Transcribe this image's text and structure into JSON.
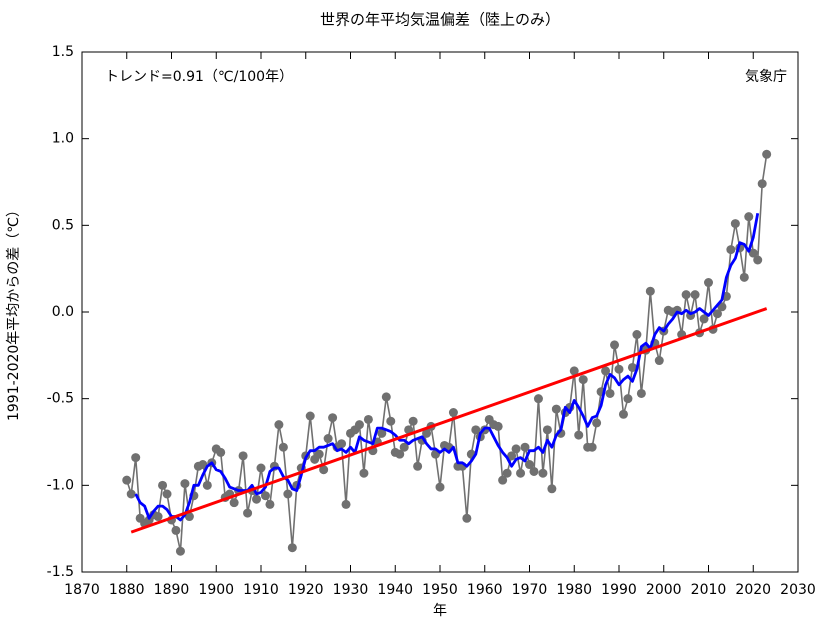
{
  "chart_data": {
    "type": "line",
    "title": "世界の年平均気温偏差（陸上のみ）",
    "x_label": "年",
    "y_label": "1991-2020年平均からの差（℃）",
    "annotations": [
      "トレンド=0.91（℃/100年）",
      "気象庁"
    ],
    "xlim": [
      1870,
      2030
    ],
    "xticks": [
      1870,
      1880,
      1890,
      1900,
      1910,
      1920,
      1930,
      1940,
      1950,
      1960,
      1970,
      1980,
      1990,
      2000,
      2010,
      2020,
      2030
    ],
    "ylim": [
      -1.5,
      1.5
    ],
    "yticks": [
      {
        "value": -1.5,
        "label": "-1.5"
      },
      {
        "value": -1.0,
        "label": "-1.0"
      },
      {
        "value": -0.5,
        "label": "-0.5"
      },
      {
        "value": 0,
        "label": "0.0"
      },
      {
        "value": 0.5,
        "label": "0.5"
      },
      {
        "value": 1.0,
        "label": "1.0"
      },
      {
        "value": 1.5,
        "label": "1.5"
      }
    ],
    "grid": false,
    "series": [
      {
        "color": "#707070",
        "markers": true,
        "x": [
          1880,
          1881,
          1882,
          1883,
          1884,
          1885,
          1886,
          1887,
          1888,
          1889,
          1890,
          1891,
          1892,
          1893,
          1894,
          1895,
          1896,
          1897,
          1898,
          1899,
          1900,
          1901,
          1902,
          1903,
          1904,
          1905,
          1906,
          1907,
          1908,
          1909,
          1910,
          1911,
          1912,
          1913,
          1914,
          1915,
          1916,
          1917,
          1918,
          1919,
          1920,
          1921,
          1922,
          1923,
          1924,
          1925,
          1926,
          1927,
          1928,
          1929,
          1930,
          1931,
          1932,
          1933,
          1934,
          1935,
          1936,
          1937,
          1938,
          1939,
          1940,
          1941,
          1942,
          1943,
          1944,
          1945,
          1946,
          1947,
          1948,
          1949,
          1950,
          1951,
          1952,
          1953,
          1954,
          1955,
          1956,
          1957,
          1958,
          1959,
          1960,
          1961,
          1962,
          1963,
          1964,
          1965,
          1966,
          1967,
          1968,
          1969,
          1970,
          1971,
          1972,
          1973,
          1974,
          1975,
          1976,
          1977,
          1978,
          1979,
          1980,
          1981,
          1982,
          1983,
          1984,
          1985,
          1986,
          1987,
          1988,
          1989,
          1990,
          1991,
          1992,
          1993,
          1994,
          1995,
          1996,
          1997,
          1998,
          1999,
          2000,
          2001,
          2002,
          2003,
          2004,
          2005,
          2006,
          2007,
          2008,
          2009,
          2010,
          2011,
          2012,
          2013,
          2014,
          2015,
          2016,
          2017,
          2018,
          2019,
          2020,
          2021,
          2022,
          2023
        ],
        "values": [
          -0.97,
          -1.05,
          -0.84,
          -1.19,
          -1.22,
          -1.2,
          -1.17,
          -1.18,
          -1.0,
          -1.05,
          -1.2,
          -1.26,
          -1.38,
          -0.99,
          -1.18,
          -1.06,
          -0.89,
          -0.88,
          -1.0,
          -0.87,
          -0.79,
          -0.81,
          -1.07,
          -1.05,
          -1.1,
          -1.03,
          -0.83,
          -1.16,
          -1.03,
          -1.08,
          -0.9,
          -1.06,
          -1.11,
          -0.89,
          -0.65,
          -0.78,
          -1.05,
          -1.36,
          -1.0,
          -0.9,
          -0.83,
          -0.6,
          -0.85,
          -0.82,
          -0.91,
          -0.73,
          -0.61,
          -0.78,
          -0.76,
          -1.11,
          -0.7,
          -0.68,
          -0.65,
          -0.93,
          -0.62,
          -0.8,
          -0.75,
          -0.7,
          -0.49,
          -0.63,
          -0.81,
          -0.82,
          -0.78,
          -0.68,
          -0.63,
          -0.89,
          -0.74,
          -0.7,
          -0.66,
          -0.82,
          -1.01,
          -0.77,
          -0.78,
          -0.58,
          -0.89,
          -0.89,
          -1.19,
          -0.82,
          -0.68,
          -0.72,
          -0.68,
          -0.62,
          -0.65,
          -0.66,
          -0.97,
          -0.93,
          -0.83,
          -0.79,
          -0.93,
          -0.78,
          -0.88,
          -0.92,
          -0.5,
          -0.93,
          -0.68,
          -1.02,
          -0.56,
          -0.7,
          -0.58,
          -0.55,
          -0.34,
          -0.71,
          -0.39,
          -0.78,
          -0.78,
          -0.64,
          -0.46,
          -0.34,
          -0.47,
          -0.19,
          -0.33,
          -0.59,
          -0.5,
          -0.32,
          -0.13,
          -0.47,
          -0.22,
          0.12,
          -0.18,
          -0.28,
          -0.11,
          0.01,
          0.0,
          0.01,
          -0.13,
          0.1,
          -0.02,
          0.1,
          -0.12,
          -0.04,
          0.17,
          -0.1,
          -0.01,
          0.03,
          0.09,
          0.36,
          0.51,
          0.37,
          0.2,
          0.55,
          0.34,
          0.3,
          0.74,
          0.91
        ]
      },
      {
        "color": "#0000ff",
        "markers": false,
        "x": [
          1882,
          1883,
          1884,
          1885,
          1886,
          1887,
          1888,
          1889,
          1890,
          1891,
          1892,
          1893,
          1894,
          1895,
          1896,
          1897,
          1898,
          1899,
          1900,
          1901,
          1902,
          1903,
          1904,
          1905,
          1906,
          1907,
          1908,
          1909,
          1910,
          1911,
          1912,
          1913,
          1914,
          1915,
          1916,
          1917,
          1918,
          1919,
          1920,
          1921,
          1922,
          1923,
          1924,
          1925,
          1926,
          1927,
          1928,
          1929,
          1930,
          1931,
          1932,
          1933,
          1934,
          1935,
          1936,
          1937,
          1938,
          1939,
          1940,
          1941,
          1942,
          1943,
          1944,
          1945,
          1946,
          1947,
          1948,
          1949,
          1950,
          1951,
          1952,
          1953,
          1954,
          1955,
          1956,
          1957,
          1958,
          1959,
          1960,
          1961,
          1962,
          1963,
          1964,
          1965,
          1966,
          1967,
          1968,
          1969,
          1970,
          1971,
          1972,
          1973,
          1974,
          1975,
          1976,
          1977,
          1978,
          1979,
          1980,
          1981,
          1982,
          1983,
          1984,
          1985,
          1986,
          1987,
          1988,
          1989,
          1990,
          1991,
          1992,
          1993,
          1994,
          1995,
          1996,
          1997,
          1998,
          1999,
          2000,
          2001,
          2002,
          2003,
          2004,
          2005,
          2006,
          2007,
          2008,
          2009,
          2010,
          2011,
          2012,
          2013,
          2014,
          2015,
          2016,
          2017,
          2018,
          2019,
          2020,
          2021
        ],
        "values": [
          -1.05,
          -1.1,
          -1.12,
          -1.19,
          -1.15,
          -1.12,
          -1.12,
          -1.14,
          -1.18,
          -1.18,
          -1.2,
          -1.17,
          -1.1,
          -1.0,
          -1.0,
          -0.94,
          -0.89,
          -0.87,
          -0.91,
          -0.92,
          -0.96,
          -1.01,
          -1.02,
          -1.03,
          -1.03,
          -1.03,
          -1.0,
          -1.05,
          -1.04,
          -1.01,
          -0.92,
          -0.9,
          -0.9,
          -0.95,
          -0.97,
          -1.02,
          -1.03,
          -0.94,
          -0.84,
          -0.8,
          -0.8,
          -0.78,
          -0.78,
          -0.77,
          -0.76,
          -0.8,
          -0.79,
          -0.81,
          -0.78,
          -0.81,
          -0.72,
          -0.74,
          -0.75,
          -0.76,
          -0.67,
          -0.67,
          -0.68,
          -0.69,
          -0.71,
          -0.74,
          -0.74,
          -0.76,
          -0.74,
          -0.73,
          -0.72,
          -0.76,
          -0.79,
          -0.79,
          -0.81,
          -0.79,
          -0.81,
          -0.78,
          -0.87,
          -0.87,
          -0.89,
          -0.86,
          -0.82,
          -0.7,
          -0.67,
          -0.67,
          -0.72,
          -0.77,
          -0.81,
          -0.84,
          -0.89,
          -0.85,
          -0.84,
          -0.86,
          -0.8,
          -0.8,
          -0.78,
          -0.81,
          -0.74,
          -0.78,
          -0.71,
          -0.68,
          -0.55,
          -0.58,
          -0.51,
          -0.55,
          -0.6,
          -0.66,
          -0.61,
          -0.6,
          -0.54,
          -0.42,
          -0.36,
          -0.38,
          -0.42,
          -0.39,
          -0.37,
          -0.4,
          -0.33,
          -0.2,
          -0.18,
          -0.21,
          -0.13,
          -0.09,
          -0.11,
          -0.07,
          -0.04,
          0.0,
          -0.01,
          0.01,
          -0.01,
          0.0,
          0.02,
          0.0,
          -0.02,
          0.01,
          0.04,
          0.07,
          0.2,
          0.27,
          0.31,
          0.4,
          0.39,
          0.35,
          0.43,
          0.57
        ]
      },
      {
        "color": "#ff0000",
        "markers": false,
        "x": [
          1881,
          2023
        ],
        "values": [
          -1.27,
          0.02
        ]
      }
    ]
  }
}
